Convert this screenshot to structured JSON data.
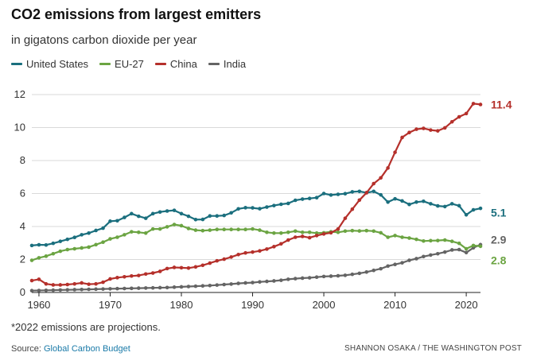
{
  "header": {
    "title": "CO2 emissions from largest emitters",
    "subtitle": "in gigatons carbon dioxide per year"
  },
  "legend": [
    {
      "label": "United States",
      "color": "#1b6f7e"
    },
    {
      "label": "EU-27",
      "color": "#6ba442"
    },
    {
      "label": "China",
      "color": "#b5302b"
    },
    {
      "label": "India",
      "color": "#646464"
    }
  ],
  "footer": {
    "footnote": "*2022 emissions are projections.",
    "source_prefix": "Source: ",
    "source_link": "Global Carbon Budget",
    "credit": "SHANNON OSAKA / THE WASHINGTON POST"
  },
  "chart_data": {
    "type": "line",
    "title": "CO2 emissions from largest emitters",
    "subtitle": "in gigatons carbon dioxide per year",
    "xlabel": "",
    "ylabel": "",
    "xlim": [
      1959,
      2022
    ],
    "ylim": [
      0,
      12
    ],
    "x_ticks": [
      1960,
      1970,
      1980,
      1990,
      2000,
      2010,
      2020
    ],
    "y_ticks": [
      0,
      2,
      4,
      6,
      8,
      10,
      12
    ],
    "grid": true,
    "legend_position": "top-left",
    "x": [
      1959,
      1960,
      1961,
      1962,
      1963,
      1964,
      1965,
      1966,
      1967,
      1968,
      1969,
      1970,
      1971,
      1972,
      1973,
      1974,
      1975,
      1976,
      1977,
      1978,
      1979,
      1980,
      1981,
      1982,
      1983,
      1984,
      1985,
      1986,
      1987,
      1988,
      1989,
      1990,
      1991,
      1992,
      1993,
      1994,
      1995,
      1996,
      1997,
      1998,
      1999,
      2000,
      2001,
      2002,
      2003,
      2004,
      2005,
      2006,
      2007,
      2008,
      2009,
      2010,
      2011,
      2012,
      2013,
      2014,
      2015,
      2016,
      2017,
      2018,
      2019,
      2020,
      2021,
      2022
    ],
    "series": [
      {
        "name": "United States",
        "color": "#1b6f7e",
        "end_label": "5.1",
        "values": [
          2.85,
          2.89,
          2.88,
          2.98,
          3.1,
          3.22,
          3.34,
          3.5,
          3.6,
          3.76,
          3.9,
          4.32,
          4.35,
          4.55,
          4.78,
          4.62,
          4.5,
          4.78,
          4.88,
          4.94,
          4.98,
          4.78,
          4.62,
          4.42,
          4.43,
          4.64,
          4.64,
          4.67,
          4.83,
          5.07,
          5.14,
          5.13,
          5.08,
          5.18,
          5.27,
          5.35,
          5.4,
          5.59,
          5.66,
          5.7,
          5.75,
          6.0,
          5.91,
          5.95,
          5.99,
          6.1,
          6.13,
          6.05,
          6.13,
          5.92,
          5.48,
          5.68,
          5.55,
          5.34,
          5.48,
          5.53,
          5.38,
          5.25,
          5.21,
          5.38,
          5.26,
          4.71,
          5.01,
          5.1
        ]
      },
      {
        "name": "EU-27",
        "color": "#6ba442",
        "end_label": "2.8",
        "values": [
          1.95,
          2.1,
          2.2,
          2.35,
          2.5,
          2.6,
          2.65,
          2.7,
          2.75,
          2.9,
          3.05,
          3.25,
          3.35,
          3.5,
          3.68,
          3.65,
          3.6,
          3.85,
          3.85,
          3.98,
          4.12,
          4.05,
          3.88,
          3.78,
          3.75,
          3.78,
          3.82,
          3.82,
          3.82,
          3.82,
          3.82,
          3.85,
          3.78,
          3.65,
          3.6,
          3.6,
          3.65,
          3.72,
          3.65,
          3.65,
          3.6,
          3.62,
          3.68,
          3.65,
          3.72,
          3.75,
          3.73,
          3.75,
          3.72,
          3.62,
          3.35,
          3.45,
          3.35,
          3.3,
          3.22,
          3.12,
          3.14,
          3.15,
          3.18,
          3.1,
          2.98,
          2.65,
          2.85,
          2.8
        ]
      },
      {
        "name": "China",
        "color": "#b5302b",
        "end_label": "11.4",
        "values": [
          0.72,
          0.8,
          0.52,
          0.46,
          0.46,
          0.48,
          0.52,
          0.58,
          0.5,
          0.52,
          0.62,
          0.82,
          0.9,
          0.95,
          1.0,
          1.03,
          1.12,
          1.18,
          1.28,
          1.45,
          1.52,
          1.5,
          1.48,
          1.55,
          1.65,
          1.78,
          1.92,
          2.02,
          2.15,
          2.3,
          2.4,
          2.45,
          2.52,
          2.63,
          2.78,
          2.95,
          3.18,
          3.35,
          3.4,
          3.32,
          3.45,
          3.55,
          3.62,
          3.85,
          4.5,
          5.05,
          5.6,
          6.05,
          6.6,
          6.95,
          7.55,
          8.5,
          9.4,
          9.7,
          9.9,
          9.95,
          9.85,
          9.8,
          9.98,
          10.35,
          10.65,
          10.85,
          11.45,
          11.4
        ]
      },
      {
        "name": "India",
        "color": "#646464",
        "end_label": "2.9",
        "values": [
          0.11,
          0.12,
          0.13,
          0.14,
          0.15,
          0.16,
          0.17,
          0.18,
          0.19,
          0.2,
          0.21,
          0.22,
          0.23,
          0.24,
          0.25,
          0.26,
          0.27,
          0.28,
          0.29,
          0.3,
          0.32,
          0.34,
          0.36,
          0.38,
          0.4,
          0.42,
          0.45,
          0.48,
          0.51,
          0.55,
          0.58,
          0.6,
          0.64,
          0.67,
          0.7,
          0.74,
          0.8,
          0.84,
          0.87,
          0.89,
          0.93,
          0.97,
          0.99,
          1.01,
          1.04,
          1.1,
          1.16,
          1.24,
          1.34,
          1.44,
          1.6,
          1.7,
          1.8,
          1.95,
          2.05,
          2.18,
          2.27,
          2.35,
          2.45,
          2.58,
          2.6,
          2.42,
          2.71,
          2.9
        ]
      }
    ]
  }
}
